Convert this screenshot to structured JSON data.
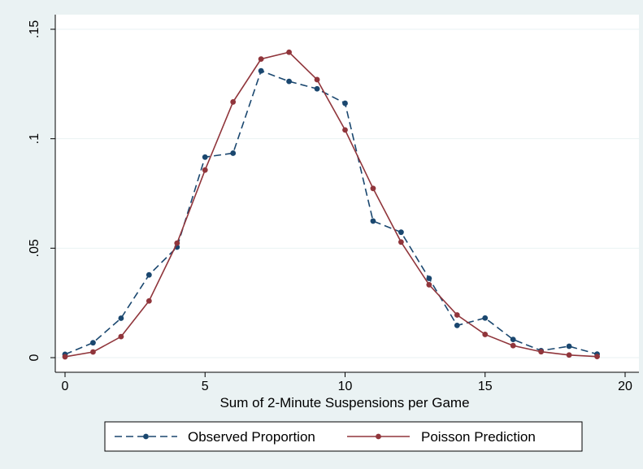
{
  "chart_data": {
    "type": "line",
    "title": "",
    "xlabel": "Sum of 2-Minute Suspensions per Game",
    "ylabel": "",
    "xlim": [
      0,
      20
    ],
    "ylim": [
      0,
      0.15
    ],
    "x_ticks": [
      0,
      5,
      10,
      15,
      20
    ],
    "x_tick_labels": [
      "0",
      "5",
      "10",
      "15",
      "20"
    ],
    "y_ticks": [
      0,
      0.05,
      0.1,
      0.15
    ],
    "y_tick_labels": [
      "0",
      ".05",
      ".1",
      ".15"
    ],
    "grid": true,
    "legend_position": "bottom",
    "x": [
      0,
      1,
      2,
      3,
      4,
      5,
      6,
      7,
      8,
      9,
      10,
      11,
      12,
      13,
      14,
      15,
      16,
      17,
      18,
      19
    ],
    "series": [
      {
        "name": "Observed Proportion",
        "color": "#1a476f",
        "style": "dashed",
        "values": [
          0.0015,
          0.0068,
          0.018,
          0.0378,
          0.0505,
          0.0916,
          0.0934,
          0.131,
          0.1262,
          0.1228,
          0.1162,
          0.0624,
          0.0573,
          0.0362,
          0.0147,
          0.0181,
          0.0083,
          0.0032,
          0.0052,
          0.0016
        ]
      },
      {
        "name": "Poisson Prediction",
        "color": "#90353b",
        "style": "solid",
        "values": [
          0.0004,
          0.0026,
          0.0096,
          0.0259,
          0.0523,
          0.0857,
          0.1168,
          0.1364,
          0.1395,
          0.127,
          0.104,
          0.0773,
          0.0528,
          0.0333,
          0.0195,
          0.0106,
          0.0055,
          0.0027,
          0.0012,
          0.0005
        ]
      }
    ]
  }
}
